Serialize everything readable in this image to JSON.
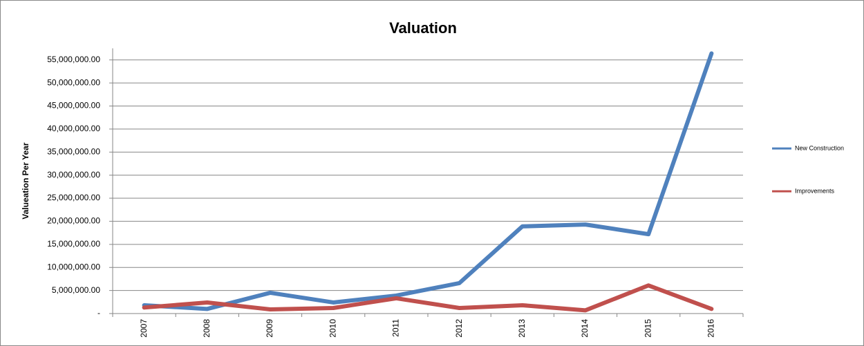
{
  "chart_data": {
    "type": "line",
    "title": "Valuation",
    "y_label": "Valueation Per Year",
    "categories": [
      "2007",
      "2008",
      "2009",
      "2010",
      "2011",
      "2012",
      "2013",
      "2014",
      "2015",
      "2016"
    ],
    "series": [
      {
        "name": "New Construction",
        "color": "#4f81bd",
        "values": [
          1800000,
          1000000,
          4500000,
          2400000,
          3900000,
          6600000,
          18900000,
          19300000,
          17200000,
          56400000
        ]
      },
      {
        "name": "Improvements",
        "color": "#c0504d",
        "values": [
          1300000,
          2400000,
          900000,
          1200000,
          3300000,
          1200000,
          1800000,
          700000,
          6100000,
          1000000
        ]
      }
    ],
    "ylim": [
      0,
      57500000
    ],
    "yticks": [
      {
        "value": 0,
        "label": "-"
      },
      {
        "value": 5000000,
        "label": "5,000,000.00"
      },
      {
        "value": 10000000,
        "label": "10,000,000.00"
      },
      {
        "value": 15000000,
        "label": "15,000,000.00"
      },
      {
        "value": 20000000,
        "label": "20,000,000.00"
      },
      {
        "value": 25000000,
        "label": "25,000,000.00"
      },
      {
        "value": 30000000,
        "label": "30,000,000.00"
      },
      {
        "value": 35000000,
        "label": "35,000,000.00"
      },
      {
        "value": 40000000,
        "label": "40,000,000.00"
      },
      {
        "value": 45000000,
        "label": "45,000,000.00"
      },
      {
        "value": 50000000,
        "label": "50,000,000.00"
      },
      {
        "value": 55000000,
        "label": "55,000,000.00"
      }
    ],
    "grid": true
  }
}
